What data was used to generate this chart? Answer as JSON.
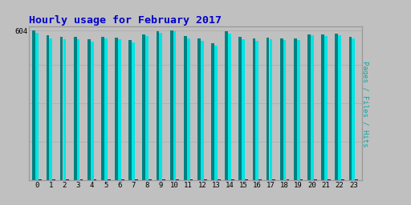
{
  "title": "Hourly usage for February 2017",
  "ylabel_right": "Pages / Files / Hits",
  "ytick_label": "604",
  "hours": [
    0,
    1,
    2,
    3,
    4,
    5,
    6,
    7,
    8,
    9,
    10,
    11,
    12,
    13,
    14,
    15,
    16,
    17,
    18,
    19,
    20,
    21,
    22,
    23
  ],
  "pages": [
    604,
    585,
    580,
    578,
    568,
    578,
    575,
    565,
    590,
    600,
    604,
    582,
    573,
    552,
    600,
    578,
    572,
    575,
    574,
    572,
    590,
    590,
    592,
    580
  ],
  "files": [
    594,
    574,
    570,
    568,
    560,
    572,
    568,
    556,
    582,
    594,
    600,
    574,
    564,
    545,
    592,
    570,
    564,
    568,
    566,
    566,
    584,
    582,
    585,
    572
  ],
  "hits": [
    5,
    4,
    4,
    3,
    3,
    3,
    4,
    4,
    4,
    5,
    5,
    4,
    3,
    3,
    4,
    3,
    3,
    3,
    3,
    3,
    4,
    4,
    4,
    4
  ],
  "color_pages": "#008080",
  "color_files": "#00e5e5",
  "color_hits": "#0000cc",
  "bg_color": "#c0c0c0",
  "plot_bg": "#c0c0c0",
  "title_color": "#0000cc",
  "ylabel_color": "#00aaaa",
  "ylim": [
    0,
    620
  ],
  "bar_width": 0.22,
  "title_fontsize": 9.5
}
